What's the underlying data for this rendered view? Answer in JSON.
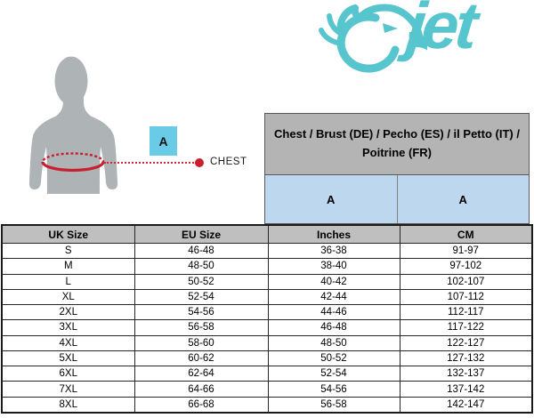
{
  "logo": {
    "brand": "jet",
    "icon": "eagle-head-icon",
    "color": "#56c5cd"
  },
  "diagram": {
    "figure": "male-torso-silhouette",
    "marker_label": "A",
    "measure_label": "CHEST",
    "silhouette_color": "#aeb3b6",
    "measure_color": "#c9202f",
    "marker_box_color": "#69cbe6"
  },
  "chest_header": {
    "title": "Chest / Brust (DE) / Pecho (ES) / il Petto (IT) / Poitrine (FR)",
    "sub_columns": [
      "A",
      "A"
    ],
    "title_bg": "#b4b4b4",
    "sub_bg": "#bdd7ee"
  },
  "size_table": {
    "headers": [
      "UK Size",
      "EU Size",
      "Inches",
      "CM"
    ],
    "rows": [
      [
        "S",
        "46-48",
        "36-38",
        "91-97"
      ],
      [
        "M",
        "48-50",
        "38-40",
        "97-102"
      ],
      [
        "L",
        "50-52",
        "40-42",
        "102-107"
      ],
      [
        "XL",
        "52-54",
        "42-44",
        "107-112"
      ],
      [
        "2XL",
        "54-56",
        "44-46",
        "112-117"
      ],
      [
        "3XL",
        "56-58",
        "46-48",
        "117-122"
      ],
      [
        "4XL",
        "58-60",
        "48-50",
        "122-127"
      ],
      [
        "5XL",
        "60-62",
        "50-52",
        "127-132"
      ],
      [
        "6XL",
        "62-64",
        "52-54",
        "132-137"
      ],
      [
        "7XL",
        "64-66",
        "54-56",
        "137-142"
      ],
      [
        "8XL",
        "66-68",
        "56-58",
        "142-147"
      ]
    ],
    "header_bg": "#bfbfbf"
  },
  "chart_data": {
    "type": "table",
    "title": "Chest / Brust (DE) / Pecho (ES) / il Petto (IT) / Poitrine (FR)",
    "measurement_marker": "A",
    "columns": [
      "UK Size",
      "EU Size",
      "Inches",
      "CM"
    ],
    "rows": [
      [
        "S",
        "46-48",
        "36-38",
        "91-97"
      ],
      [
        "M",
        "48-50",
        "38-40",
        "97-102"
      ],
      [
        "L",
        "50-52",
        "40-42",
        "102-107"
      ],
      [
        "XL",
        "52-54",
        "42-44",
        "107-112"
      ],
      [
        "2XL",
        "54-56",
        "44-46",
        "112-117"
      ],
      [
        "3XL",
        "56-58",
        "46-48",
        "117-122"
      ],
      [
        "4XL",
        "58-60",
        "48-50",
        "122-127"
      ],
      [
        "5XL",
        "60-62",
        "50-52",
        "127-132"
      ],
      [
        "6XL",
        "62-64",
        "52-54",
        "132-137"
      ],
      [
        "7XL",
        "64-66",
        "54-56",
        "137-142"
      ],
      [
        "8XL",
        "66-68",
        "56-58",
        "142-147"
      ]
    ]
  }
}
